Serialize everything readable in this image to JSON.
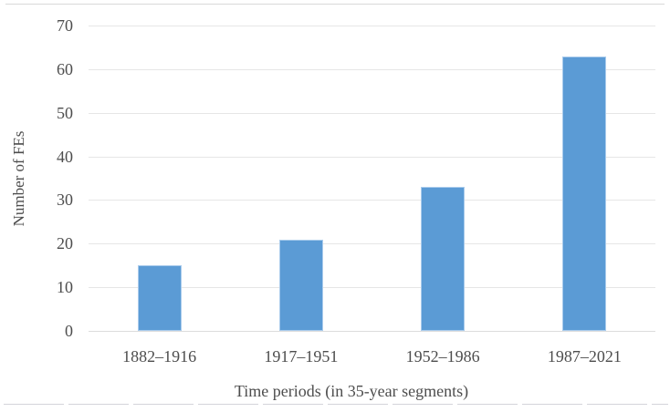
{
  "chart_data": {
    "type": "bar",
    "title": "",
    "categories": [
      "1882–1916",
      "1917–1951",
      "1952–1986",
      "1987–2021"
    ],
    "values": [
      15,
      21,
      33,
      63
    ],
    "xlabel": "Time periods (in 35-year segments)",
    "ylabel": "Number of FEs",
    "ylim": [
      0,
      70
    ],
    "yticks": [
      0,
      10,
      20,
      30,
      40,
      50,
      60,
      70
    ],
    "grid": true,
    "legend": false,
    "bar_color": "#5b9bd5",
    "bar_edge_color": "#a9cbec",
    "gridline_color": "#e6e6e6",
    "axis_line_color": "#dcdcdc",
    "text_color": "#4d4d4d"
  }
}
